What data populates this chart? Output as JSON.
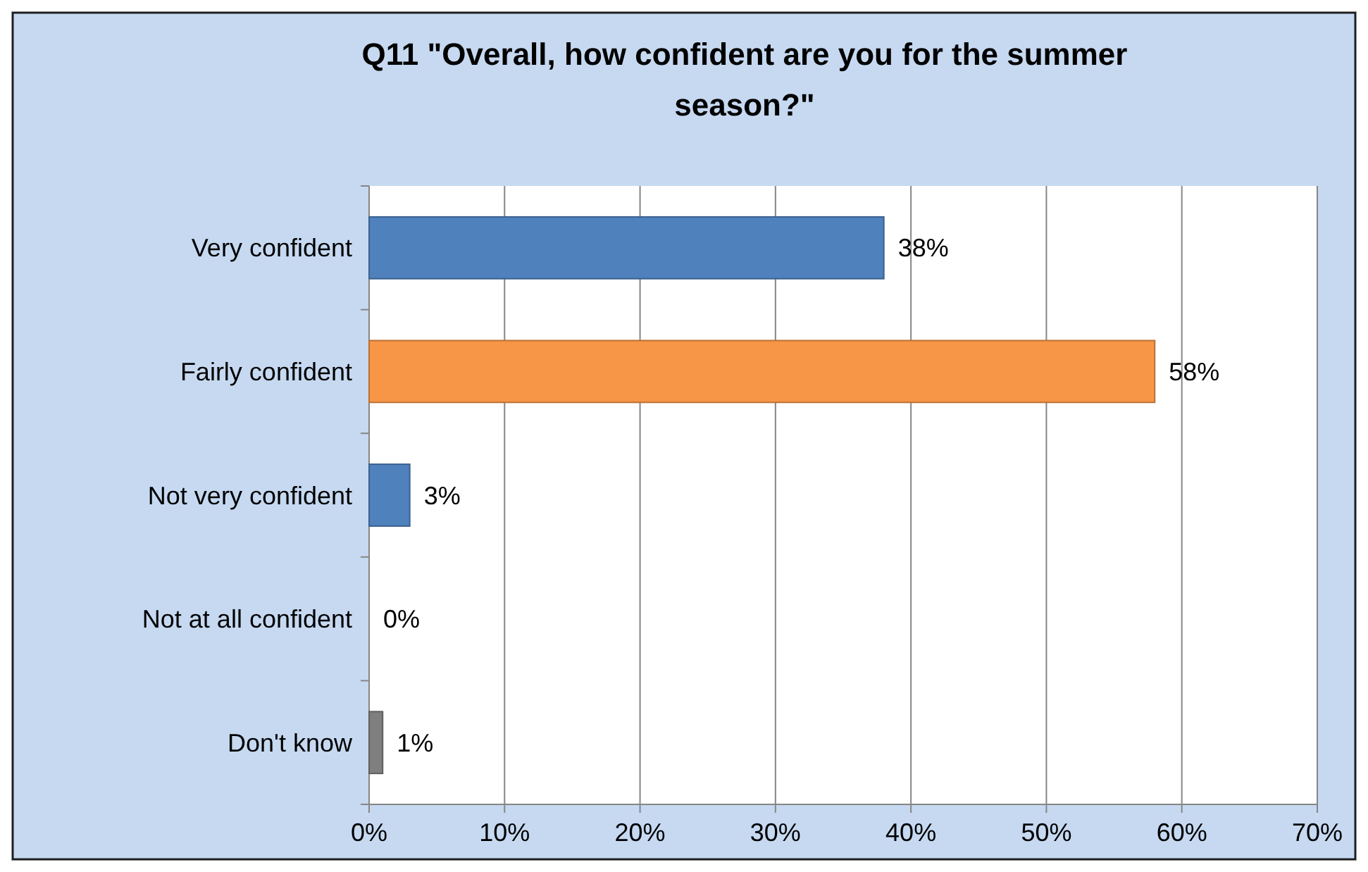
{
  "chart_data": {
    "type": "bar",
    "orientation": "horizontal",
    "title": "Q11 \"Overall, how confident are you for the summer season?\"",
    "categories": [
      "Very confident",
      "Fairly confident",
      "Not very confident",
      "Not at all confident",
      "Don't know"
    ],
    "values": [
      38,
      58,
      3,
      0,
      1
    ],
    "colors": [
      "#4f81bd",
      "#f79646",
      "#4f81bd",
      "#4f81bd",
      "#7f7f7f"
    ],
    "value_labels": [
      "38%",
      "58%",
      "3%",
      "0%",
      "1%"
    ],
    "xlim": [
      0,
      70
    ],
    "xticks": [
      {
        "value": 0,
        "label": "0%"
      },
      {
        "value": 10,
        "label": "10%"
      },
      {
        "value": 20,
        "label": "20%"
      },
      {
        "value": 30,
        "label": "30%"
      },
      {
        "value": 40,
        "label": "40%"
      },
      {
        "value": 50,
        "label": "50%"
      },
      {
        "value": 60,
        "label": "60%"
      },
      {
        "value": 70,
        "label": "70%"
      }
    ],
    "grid": "x"
  }
}
